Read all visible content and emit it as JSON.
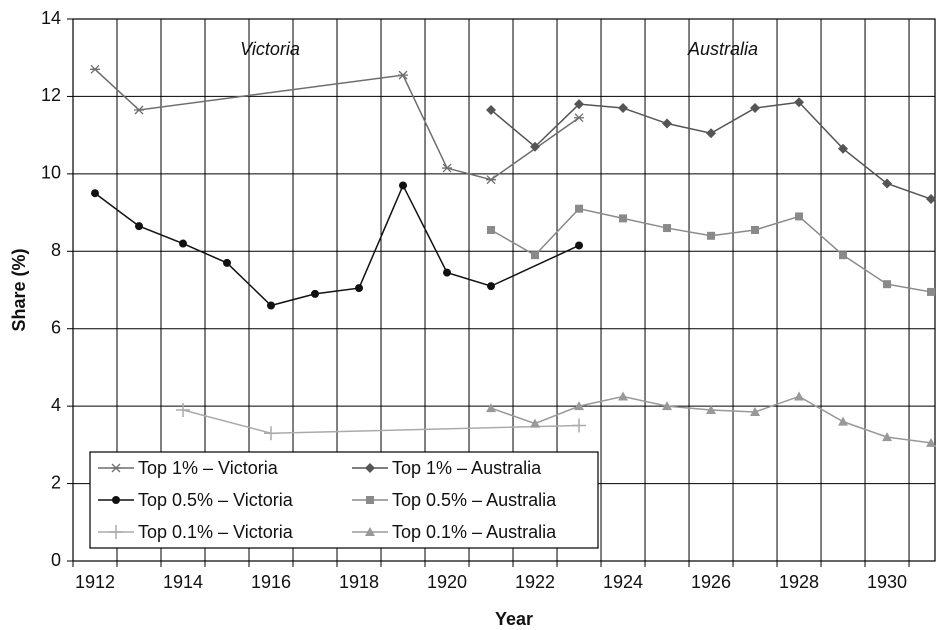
{
  "chart_data": {
    "type": "line",
    "xlabel": "Year",
    "ylabel": "Share (%)",
    "annotations": [
      "Victoria",
      "Australia"
    ],
    "xlim": [
      1911.5,
      1931.09
    ],
    "ylim": [
      0,
      14
    ],
    "xticks": [
      1912,
      1914,
      1916,
      1918,
      1920,
      1922,
      1924,
      1926,
      1928,
      1930
    ],
    "xminorticks": [
      1911.5,
      1912.5,
      1913.5,
      1914.5,
      1915.5,
      1916.5,
      1917.5,
      1918.5,
      1919.5,
      1920.5,
      1921.5,
      1922.5,
      1923.5,
      1924.5,
      1925.5,
      1926.5,
      1927.5,
      1928.5,
      1929.5,
      1930.5
    ],
    "yticks": [
      0,
      2,
      4,
      6,
      8,
      10,
      12,
      14
    ],
    "grid": true,
    "legend": "lower left",
    "series": [
      {
        "name": "Top 1% – Victoria",
        "color": "#6e6e6e",
        "marker": "star",
        "x": [
          1912,
          1913,
          1919,
          1920,
          1921,
          1923
        ],
        "values": [
          12.7,
          11.65,
          12.55,
          10.15,
          9.85,
          11.45
        ]
      },
      {
        "name": "Top 0.5% – Victoria",
        "color": "#111111",
        "marker": "circle",
        "x": [
          1912,
          1913,
          1914,
          1915,
          1916,
          1917,
          1918,
          1919,
          1920,
          1921,
          1923
        ],
        "values": [
          9.5,
          8.65,
          8.2,
          7.7,
          6.6,
          6.9,
          7.05,
          9.7,
          7.45,
          7.1,
          8.15
        ]
      },
      {
        "name": "Top 0.1% – Victoria",
        "color": "#aaaaaa",
        "marker": "plus",
        "x": [
          1914,
          1916,
          1923
        ],
        "values": [
          3.9,
          3.3,
          3.5
        ]
      },
      {
        "name": "Top 1% – Australia",
        "color": "#555555",
        "marker": "diamond",
        "x": [
          1921,
          1922,
          1923,
          1924,
          1925,
          1926,
          1927,
          1928,
          1929,
          1930,
          1931
        ],
        "values": [
          11.65,
          10.7,
          11.8,
          11.7,
          11.3,
          11.05,
          11.7,
          11.85,
          10.65,
          9.75,
          9.35
        ]
      },
      {
        "name": "Top 0.5% – Australia",
        "color": "#8a8a8a",
        "marker": "square",
        "x": [
          1921,
          1922,
          1923,
          1924,
          1925,
          1926,
          1927,
          1928,
          1929,
          1930,
          1931
        ],
        "values": [
          8.55,
          7.9,
          9.1,
          8.85,
          8.6,
          8.4,
          8.55,
          8.9,
          7.9,
          7.15,
          6.95
        ]
      },
      {
        "name": "Top 0.1% – Australia",
        "color": "#999999",
        "marker": "triangle",
        "x": [
          1921,
          1922,
          1923,
          1924,
          1925,
          1926,
          1927,
          1928,
          1929,
          1930,
          1931
        ],
        "values": [
          3.95,
          3.55,
          4.0,
          4.25,
          4.0,
          3.9,
          3.85,
          4.25,
          3.6,
          3.2,
          3.05
        ]
      }
    ]
  }
}
